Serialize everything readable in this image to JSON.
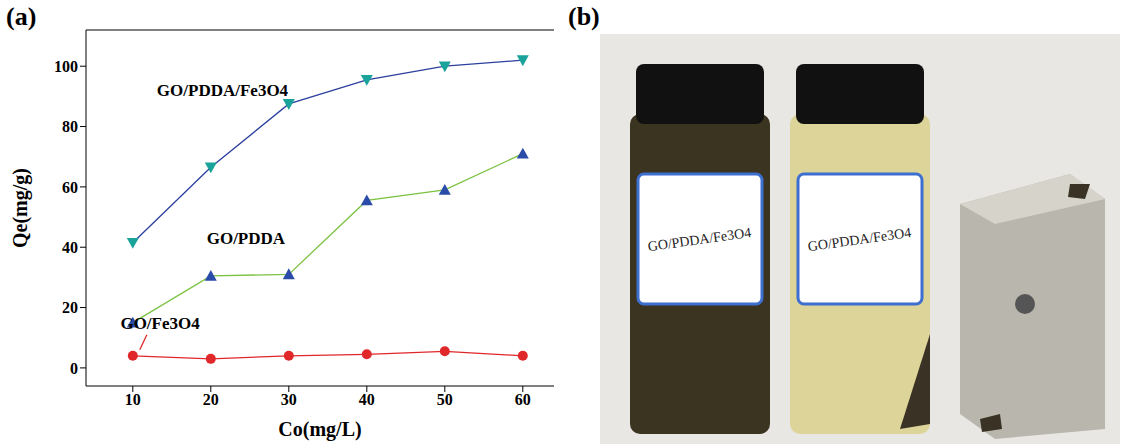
{
  "chart_data": {
    "type": "line",
    "title": "(a)",
    "x_label": "Co(mg/L)",
    "y_label": "Qe(mg/g)",
    "x": [
      10,
      20,
      30,
      40,
      50,
      60
    ],
    "series": [
      {
        "name": "GO/PDDA/Fe3O4",
        "color": "#2b3f9e",
        "marker": "triangle-down",
        "values": [
          41.5,
          66.5,
          87.5,
          95.5,
          100,
          102
        ]
      },
      {
        "name": "GO/PDDA",
        "color": "#7cc242",
        "marker": "triangle",
        "values": [
          15,
          30.5,
          31,
          55.5,
          59,
          71
        ]
      },
      {
        "name": "GO/Fe3O4",
        "color": "#e0282b",
        "marker": "circle",
        "values": [
          4,
          3,
          4,
          4.5,
          5.5,
          4
        ]
      }
    ],
    "xlim": [
      4,
      64
    ],
    "xticks": [
      10,
      20,
      30,
      40,
      50,
      60
    ],
    "ylim": [
      -6,
      112
    ],
    "yticks": [
      0,
      20,
      40,
      60,
      80,
      100
    ],
    "grid": false
  },
  "photo": {
    "label": "(b)",
    "vial_labels": [
      "GO/PDDA/Fe3O4",
      "GO/PDDA/Fe3O4"
    ]
  }
}
